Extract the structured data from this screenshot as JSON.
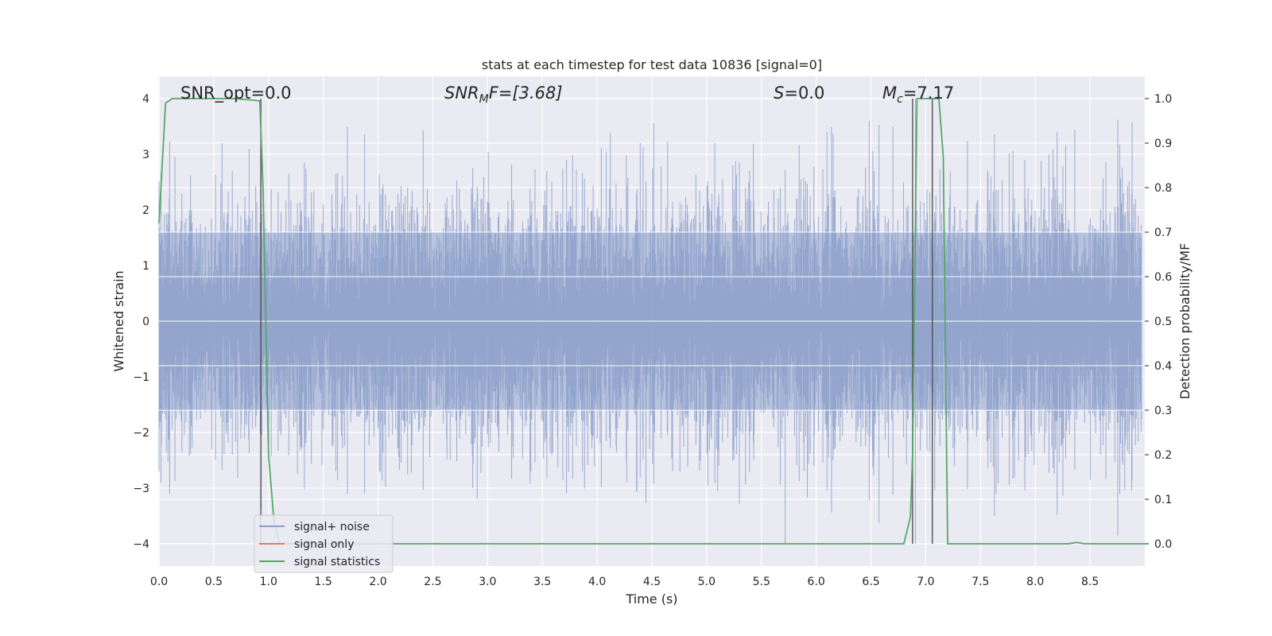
{
  "chart_data": {
    "type": "line",
    "title": "stats at each timestep for test data 10836 [signal=0]",
    "xlabel": "Time (s)",
    "ylabel": "Whitened strain",
    "ylabel_right": "Detection probability/MF",
    "xlim": [
      0.0,
      9.0
    ],
    "ylim": [
      -4.4,
      4.4
    ],
    "ylim_right": [
      -0.05,
      1.05
    ],
    "x_ticks": [
      "0.0",
      "0.5",
      "1.0",
      "1.5",
      "2.0",
      "2.5",
      "3.0",
      "3.5",
      "4.0",
      "4.5",
      "5.0",
      "5.5",
      "6.0",
      "6.5",
      "7.0",
      "7.5",
      "8.0",
      "8.5"
    ],
    "y_ticks_left": [
      "4",
      "3",
      "2",
      "1",
      "0",
      "−1",
      "−2",
      "−3",
      "−4"
    ],
    "y_ticks_right": [
      "1.0",
      "0.9",
      "0.8",
      "0.7",
      "0.6",
      "0.5",
      "0.4",
      "0.3",
      "0.2",
      "0.1",
      "0.0"
    ],
    "grid": true,
    "legend_position": "lower-left",
    "annotations": {
      "snr_opt": "SNR_opt=0.0",
      "snr_mf_base": "SNR",
      "snr_mf_sub": "M",
      "snr_mf_rest": "F=[3.68]",
      "s_base": "S",
      "s_rest": "=0.0",
      "mc_base": "M",
      "mc_sub": "c",
      "mc_rest": "=7.17"
    },
    "series": [
      {
        "name": "signal+ noise",
        "color": "#8da0cb",
        "note_values": "dense whitened noise, approx within [-4, 4]"
      },
      {
        "name": "signal only",
        "color": "#dd8452",
        "values": []
      },
      {
        "name": "signal statistics",
        "color": "#55a868",
        "x": [
          0.0,
          0.06,
          0.12,
          0.3,
          0.5,
          0.7,
          0.92,
          0.95,
          1.0,
          1.05,
          1.1,
          2.0,
          3.0,
          4.0,
          4.6,
          5.0,
          6.0,
          6.8,
          6.86,
          6.88,
          6.92,
          6.96,
          7.02,
          7.06,
          7.12,
          7.16,
          7.2,
          7.5,
          8.0,
          8.3,
          8.38,
          8.45,
          9.0
        ],
        "values": [
          0.72,
          0.99,
          1.0,
          1.0,
          1.0,
          1.0,
          0.995,
          0.8,
          0.2,
          0.05,
          0.0,
          0.0,
          0.0,
          0.0,
          0.0,
          0.0,
          0.0,
          0.0,
          0.06,
          0.2,
          1.0,
          1.0,
          1.0,
          1.0,
          1.0,
          0.87,
          0.0,
          0.0,
          0.0,
          0.0,
          0.003,
          0.0,
          0.0
        ]
      }
    ],
    "vlines_x": [
      0.93,
      6.88,
      7.06
    ]
  }
}
